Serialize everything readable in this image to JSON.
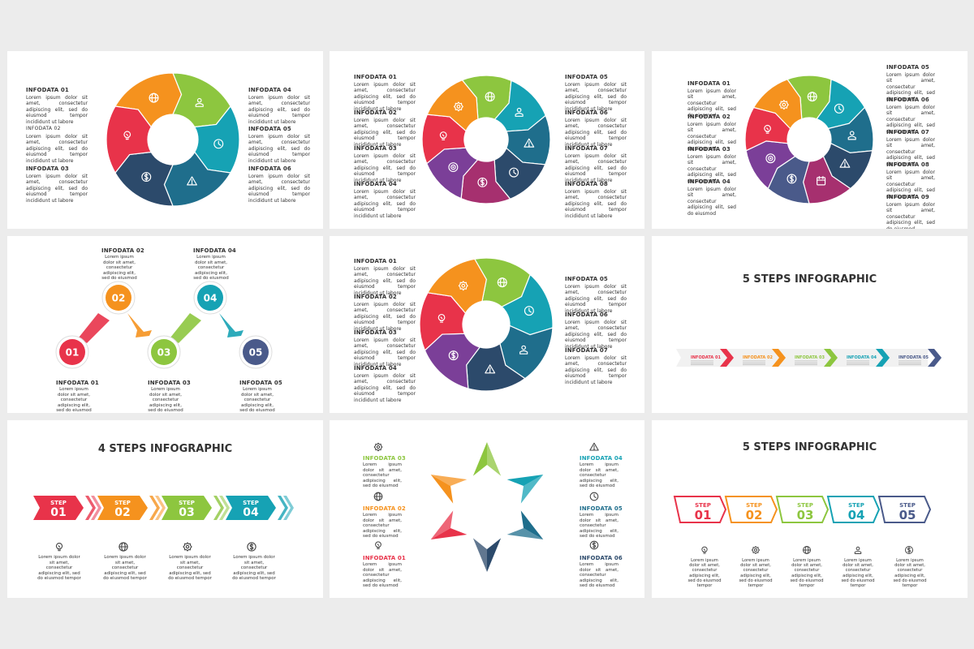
{
  "colors": {
    "red": "#e8334a",
    "orange": "#f5921e",
    "green": "#8dc63f",
    "teal": "#16a2b4",
    "blue": "#1f6e8c",
    "navy": "#2c4a6b",
    "purple": "#7b3f98",
    "magenta": "#a6306f",
    "slate": "#4a5a8a",
    "text": "#333333"
  },
  "lorem": "Lorem ipsum dolor sit amet, consectetur adipiscing elit, sed do eiusmod tempor incididunt ut labore",
  "lorem_short": "Lorem ipsum dolor sit amet, consectetur adipiscing elit, sed do eiusmod",
  "lorem_tiny": "Lorem ipsum dolor sit amet, consectetur adipiscing elit, sed do eiusmod tempor",
  "s1": {
    "labels": [
      "INFODATA 01",
      "INFODATA 02",
      "INFODATA 03",
      "INFODATA 04",
      "INFODATA 05",
      "INFODATA 06"
    ],
    "icons": [
      "globe-icon",
      "user-icon",
      "clock-icon",
      "warning-icon",
      "dollar-icon",
      "bulb-icon"
    ]
  },
  "s2": {
    "labels": [
      "INFODATA 01",
      "INFODATA 02",
      "INFODATA 03",
      "INFODATA 04",
      "INFODATA 05",
      "INFODATA 06",
      "INFODATA 07",
      "INFODATA 08"
    ]
  },
  "s3": {
    "labels": [
      "INFODATA 01",
      "INFODATA 02",
      "INFODATA 03",
      "INFODATA 04",
      "INFODATA 05",
      "INFODATA 06",
      "INFODATA 07",
      "INFODATA 08",
      "INFODATA 09"
    ]
  },
  "s4": {
    "labels": [
      "INFODATA 01",
      "INFODATA 02",
      "INFODATA 03",
      "INFODATA 04",
      "INFODATA 05"
    ],
    "numbers": [
      "01",
      "02",
      "03",
      "04",
      "05"
    ],
    "body": "Lorem ipsum dolor sit amet, consectetur adipiscing elit, sed do eiusmod"
  },
  "s5": {
    "labels": [
      "INFODATA 01",
      "INFODATA 02",
      "INFODATA 03",
      "INFODATA 04",
      "INFODATA 05",
      "INFODATA 06",
      "INFODATA 07"
    ]
  },
  "s6": {
    "title": "5 STEPS INFOGRAPHIC",
    "labels": [
      "INFODATA 01",
      "INFODATA 02",
      "INFODATA 03",
      "INFODATA 04",
      "INFODATA 05"
    ]
  },
  "s7": {
    "title": "4 STEPS INFOGRAPHIC",
    "step_word": "STEP",
    "numbers": [
      "01",
      "02",
      "03",
      "04"
    ],
    "icons": [
      "bulb-icon",
      "globe-icon",
      "gear-icon",
      "dollar-icon"
    ],
    "body": "Lorem ipsum dolor sit amet, consectetur adipiscing elit, sed do eiusmod tempor"
  },
  "s8": {
    "labels": [
      "INFODATA 03",
      "INFODATA 02",
      "INFODATA 01",
      "INFODATA 04",
      "INFODATA 05",
      "INFODATA 06"
    ],
    "icons": [
      "gear-icon",
      "globe-icon",
      "bulb-icon",
      "warning-icon",
      "clock-icon",
      "dollar-icon"
    ]
  },
  "s9": {
    "title": "5 STEPS INFOGRAPHIC",
    "step_word": "STEP",
    "numbers": [
      "01",
      "02",
      "03",
      "04",
      "05"
    ],
    "icons": [
      "bulb-icon",
      "gear-icon",
      "globe-icon",
      "user-icon",
      "dollar-icon"
    ],
    "body": "Lorem ipsum dolor sit amet, consectetur adipiscing elit, sed do eiusmod tempor"
  }
}
